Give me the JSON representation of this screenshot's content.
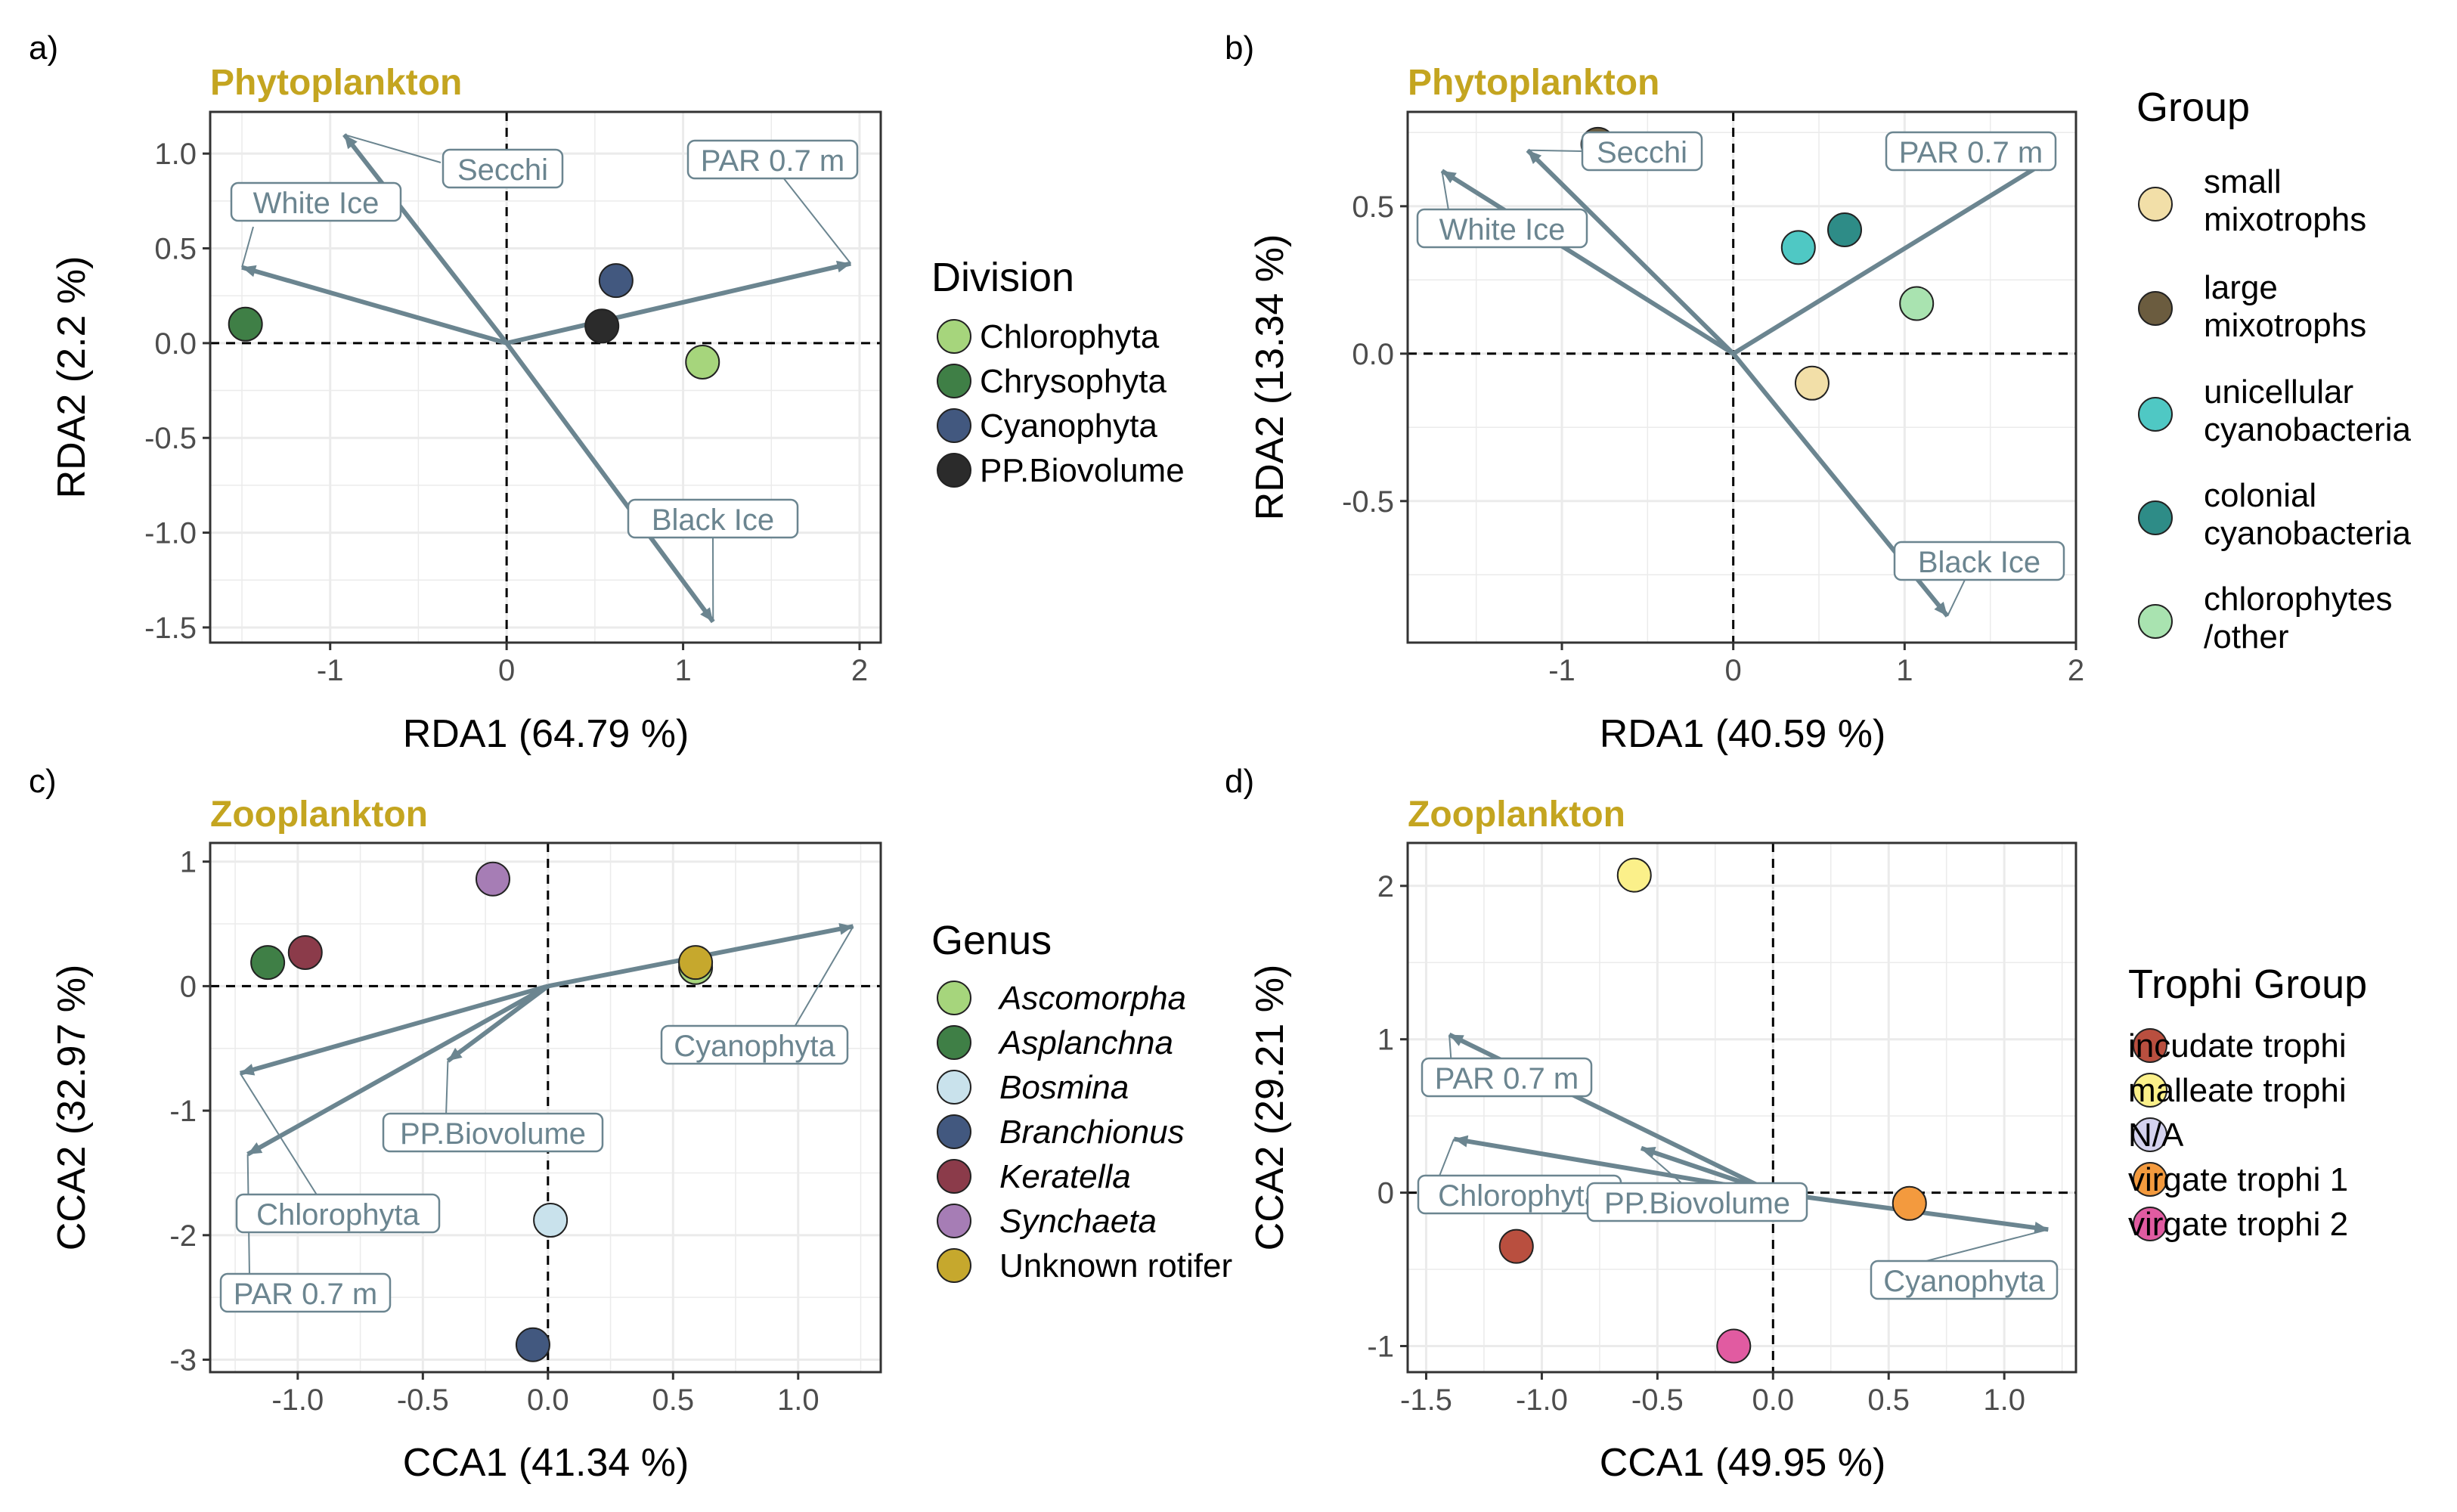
{
  "figure": {
    "panels": [
      {
        "tag": "a)",
        "title": "Phytoplankton",
        "xlabel": "RDA1 (64.79 %)",
        "ylabel": "RDA2 (2.2 %)",
        "x_ticks": [
          "-1",
          "0",
          "1",
          "2"
        ],
        "y_ticks": [
          "1.0",
          "0.5",
          "0.0",
          "-0.5",
          "-1.0",
          "-1.5"
        ],
        "legend_title": "Division",
        "legend_items": [
          "Chlorophyta",
          "Chrysophyta",
          "Cyanophyta",
          "PP.Biovolume"
        ],
        "arrow_labels": [
          "Secchi",
          "White Ice",
          "PAR 0.7 m",
          "Black Ice"
        ]
      },
      {
        "tag": "b)",
        "title": "Phytoplankton",
        "xlabel": "RDA1 (40.59 %)",
        "ylabel": "RDA2 (13.34 %)",
        "x_ticks": [
          "-1",
          "0",
          "1",
          "2"
        ],
        "y_ticks": [
          "0.5",
          "0.0",
          "-0.5"
        ],
        "legend_title": "Group",
        "legend_items": [
          "small mixotrophs",
          "large mixotrophs",
          "unicellular cyanobacteria",
          "colonial cyanobacteria",
          "chlorophytes /other"
        ],
        "arrow_labels": [
          "Secchi",
          "White Ice",
          "PAR 0.7 m",
          "Black Ice"
        ]
      },
      {
        "tag": "c)",
        "title": "Zooplankton",
        "xlabel": "CCA1 (41.34 %)",
        "ylabel": "CCA2 (32.97 %)",
        "x_ticks": [
          "-1.0",
          "-0.5",
          "0.0",
          "0.5",
          "1.0"
        ],
        "y_ticks": [
          "1",
          "0",
          "-1",
          "-2",
          "-3"
        ],
        "legend_title": "Genus",
        "legend_items": [
          "Ascomorpha",
          "Asplanchna",
          "Bosmina",
          "Branchionus",
          "Keratella",
          "Synchaeta",
          "Unknown rotifer"
        ],
        "arrow_labels": [
          "Cyanophyta",
          "PP.Biovolume",
          "Chlorophyta",
          "PAR 0.7 m"
        ]
      },
      {
        "tag": "d)",
        "title": "Zooplankton",
        "xlabel": "CCA1 (49.95 %)",
        "ylabel": "CCA2 (29.21 %)",
        "x_ticks": [
          "-1.5",
          "-1.0",
          "-0.5",
          "0.0",
          "0.5",
          "1.0"
        ],
        "y_ticks": [
          "2",
          "1",
          "0",
          "-1"
        ],
        "legend_title": "Trophi Group",
        "legend_items": [
          "incudate trophi",
          "malleate trophi",
          "N/A",
          "virgate trophi 1",
          "virgate trophi 2"
        ],
        "arrow_labels": [
          "PAR 0.7 m",
          "Chlorophyta",
          "PP.Biovolume",
          "Cyanophyta"
        ]
      }
    ]
  },
  "chart_data": [
    {
      "type": "scatter",
      "title": "Phytoplankton",
      "xlabel": "RDA1 (64.79 %)",
      "ylabel": "RDA2 (2.2 %)",
      "xlim": [
        -1.68,
        2.12
      ],
      "ylim": [
        -1.58,
        1.22
      ],
      "xticks": [
        -1,
        0,
        1,
        2
      ],
      "yticks": [
        1.0,
        0.5,
        0.0,
        -0.5,
        -1.0,
        -1.5
      ],
      "grid": true,
      "legend_title": "Division",
      "legend_position": "right",
      "points": [
        {
          "name": "Chlorophyta",
          "x": 1.11,
          "y": -0.1,
          "color": "#a6d57c"
        },
        {
          "name": "Chrysophyta",
          "x": -1.48,
          "y": 0.1,
          "color": "#3f7f46"
        },
        {
          "name": "Cyanophyta",
          "x": 0.62,
          "y": 0.33,
          "color": "#42587f"
        },
        {
          "name": "PP.Biovolume",
          "x": 0.54,
          "y": 0.09,
          "color": "#2b2b2b"
        }
      ],
      "arrows": [
        {
          "name": "Secchi",
          "x": -0.92,
          "y": 1.1
        },
        {
          "name": "White Ice",
          "x": -1.5,
          "y": 0.4
        },
        {
          "name": "PAR 0.7 m",
          "x": 1.95,
          "y": 0.42
        },
        {
          "name": "Black Ice",
          "x": 1.17,
          "y": -1.47
        }
      ]
    },
    {
      "type": "scatter",
      "title": "Phytoplankton",
      "xlabel": "RDA1 (40.59 %)",
      "ylabel": "RDA2 (13.34 %)",
      "xlim": [
        -1.9,
        2.0
      ],
      "ylim": [
        -0.98,
        0.82
      ],
      "xticks": [
        -1,
        0,
        1,
        2
      ],
      "yticks": [
        0.5,
        0.0,
        -0.5
      ],
      "grid": true,
      "legend_title": "Group",
      "legend_position": "right",
      "points": [
        {
          "name": "small mixotrophs",
          "x": 0.46,
          "y": -0.1,
          "color": "#f2dfa8"
        },
        {
          "name": "large mixotrophs",
          "x": -0.79,
          "y": 0.71,
          "color": "#6b5c3f"
        },
        {
          "name": "unicellular cyanobacteria",
          "x": 0.38,
          "y": 0.36,
          "color": "#4fc8c4"
        },
        {
          "name": "colonial cyanobacteria",
          "x": 0.65,
          "y": 0.42,
          "color": "#2e8c87"
        },
        {
          "name": "chlorophytes /other",
          "x": 1.07,
          "y": 0.17,
          "color": "#a9e3b0"
        }
      ],
      "arrows": [
        {
          "name": "Secchi",
          "x": -1.2,
          "y": 0.69
        },
        {
          "name": "White Ice",
          "x": -1.7,
          "y": 0.62
        },
        {
          "name": "PAR 0.7 m",
          "x": 1.85,
          "y": 0.66
        },
        {
          "name": "Black Ice",
          "x": 1.25,
          "y": -0.89
        }
      ]
    },
    {
      "type": "scatter",
      "title": "Zooplankton",
      "xlabel": "CCA1 (41.34 %)",
      "ylabel": "CCA2 (32.97 %)",
      "xlim": [
        -1.35,
        1.33
      ],
      "ylim": [
        -3.1,
        1.15
      ],
      "xticks": [
        -1.0,
        -0.5,
        0.0,
        0.5,
        1.0
      ],
      "yticks": [
        1,
        0,
        -1,
        -2,
        -3
      ],
      "grid": true,
      "legend_title": "Genus",
      "legend_position": "right",
      "points": [
        {
          "name": "Ascomorpha",
          "x": 0.59,
          "y": 0.15,
          "color": "#a6d57c"
        },
        {
          "name": "Asplanchna",
          "x": -1.12,
          "y": 0.19,
          "color": "#3f7f46"
        },
        {
          "name": "Bosmina",
          "x": 0.01,
          "y": -1.88,
          "color": "#c9e2ec"
        },
        {
          "name": "Branchionus",
          "x": -0.06,
          "y": -2.88,
          "color": "#42587f"
        },
        {
          "name": "Keratella",
          "x": -0.97,
          "y": 0.27,
          "color": "#8b3b4a"
        },
        {
          "name": "Synchaeta",
          "x": -0.22,
          "y": 0.86,
          "color": "#a67db5"
        },
        {
          "name": "Unknown rotifer",
          "x": 0.59,
          "y": 0.19,
          "color": "#c6a82d"
        }
      ],
      "arrows": [
        {
          "name": "Cyanophyta",
          "x": 1.22,
          "y": 0.48
        },
        {
          "name": "PP.Biovolume",
          "x": -0.4,
          "y": -0.6
        },
        {
          "name": "Chlorophyta",
          "x": -1.23,
          "y": -0.7
        },
        {
          "name": "PAR 0.7 m",
          "x": -1.2,
          "y": -1.35
        }
      ]
    },
    {
      "type": "scatter",
      "title": "Zooplankton",
      "xlabel": "CCA1 (49.95 %)",
      "ylabel": "CCA2 (29.21 %)",
      "xlim": [
        -1.58,
        1.31
      ],
      "ylim": [
        -1.17,
        2.28
      ],
      "xticks": [
        -1.5,
        -1.0,
        -0.5,
        0.0,
        0.5,
        1.0
      ],
      "yticks": [
        2,
        1,
        0,
        -1
      ],
      "grid": true,
      "legend_title": "Trophi Group",
      "legend_position": "right",
      "points": [
        {
          "name": "incudate trophi",
          "x": -1.11,
          "y": -0.35,
          "color": "#b94f3f"
        },
        {
          "name": "malleate trophi",
          "x": -0.6,
          "y": 2.07,
          "color": "#fbf08a"
        },
        {
          "name": "N/A",
          "x": 0.0,
          "y": 0.0,
          "color": "#d4d2ef",
          "hidden": true
        },
        {
          "name": "virgate trophi 1",
          "x": 0.59,
          "y": -0.07,
          "color": "#f39a3e"
        },
        {
          "name": "virgate trophi 2",
          "x": -0.17,
          "y": -1.0,
          "color": "#e15ba1"
        }
      ],
      "arrows": [
        {
          "name": "PAR 0.7 m",
          "x": -1.4,
          "y": 1.03
        },
        {
          "name": "Chlorophyta",
          "x": -1.38,
          "y": 0.35
        },
        {
          "name": "PP.Biovolume",
          "x": -0.57,
          "y": 0.29
        },
        {
          "name": "Cyanophyta",
          "x": 1.19,
          "y": -0.24
        }
      ]
    }
  ],
  "colors": {
    "title": "#c4a520",
    "arrow": "#6b8590",
    "grid": "#ebebeb"
  }
}
